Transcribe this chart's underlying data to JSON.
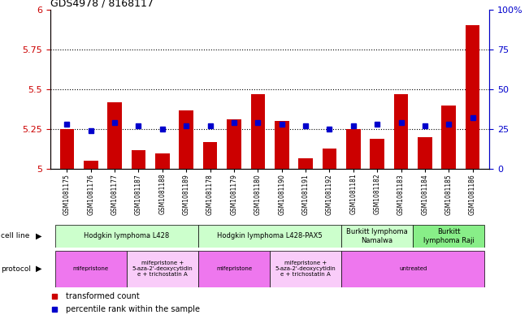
{
  "title": "GDS4978 / 8168117",
  "samples": [
    "GSM1081175",
    "GSM1081176",
    "GSM1081177",
    "GSM1081187",
    "GSM1081188",
    "GSM1081189",
    "GSM1081178",
    "GSM1081179",
    "GSM1081180",
    "GSM1081190",
    "GSM1081191",
    "GSM1081192",
    "GSM1081181",
    "GSM1081182",
    "GSM1081183",
    "GSM1081184",
    "GSM1081185",
    "GSM1081186"
  ],
  "red_values": [
    5.25,
    5.05,
    5.42,
    5.12,
    5.1,
    5.37,
    5.17,
    5.31,
    5.47,
    5.3,
    5.07,
    5.13,
    5.25,
    5.19,
    5.47,
    5.2,
    5.4,
    5.9
  ],
  "blue_values": [
    28,
    24,
    29,
    27,
    25,
    27,
    27,
    29,
    29,
    28,
    27,
    25,
    27,
    28,
    29,
    27,
    28,
    32
  ],
  "ymin": 5.0,
  "ymax": 6.0,
  "yticks": [
    5.0,
    5.25,
    5.5,
    5.75,
    6.0
  ],
  "ytick_labels": [
    "5",
    "5.25",
    "5.5",
    "5.75",
    "6"
  ],
  "y2min": 0,
  "y2max": 100,
  "y2ticks": [
    0,
    25,
    50,
    75,
    100
  ],
  "y2tick_labels": [
    "0",
    "25",
    "50",
    "75",
    "100%"
  ],
  "dotted_lines": [
    5.25,
    5.5,
    5.75
  ],
  "cell_line_groups": [
    {
      "label": "Hodgkin lymphoma L428",
      "start": 0,
      "end": 5,
      "color": "#ccffcc"
    },
    {
      "label": "Hodgkin lymphoma L428-PAX5",
      "start": 6,
      "end": 11,
      "color": "#ccffcc"
    },
    {
      "label": "Burkitt lymphoma\nNamalwa",
      "start": 12,
      "end": 14,
      "color": "#ccffcc"
    },
    {
      "label": "Burkitt\nlymphoma Raji",
      "start": 15,
      "end": 17,
      "color": "#88ee88"
    }
  ],
  "protocol_groups": [
    {
      "label": "mifepristone",
      "start": 0,
      "end": 2,
      "color": "#ee77ee"
    },
    {
      "label": "mifepristone +\n5-aza-2'-deoxycytidin\ne + trichostatin A",
      "start": 3,
      "end": 5,
      "color": "#f9ccf9"
    },
    {
      "label": "mifepristone",
      "start": 6,
      "end": 8,
      "color": "#ee77ee"
    },
    {
      "label": "mifepristone +\n5-aza-2'-deoxycytidin\ne + trichostatin A",
      "start": 9,
      "end": 11,
      "color": "#f9ccf9"
    },
    {
      "label": "untreated",
      "start": 12,
      "end": 17,
      "color": "#ee77ee"
    }
  ],
  "bar_color": "#cc0000",
  "dot_color": "#0000cc",
  "bar_width": 0.6,
  "background_color": "#ffffff",
  "tick_label_color_left": "#cc0000",
  "tick_label_color_right": "#0000cc",
  "legend_items": [
    {
      "label": "transformed count",
      "color": "#cc0000"
    },
    {
      "label": "percentile rank within the sample",
      "color": "#0000cc"
    }
  ]
}
